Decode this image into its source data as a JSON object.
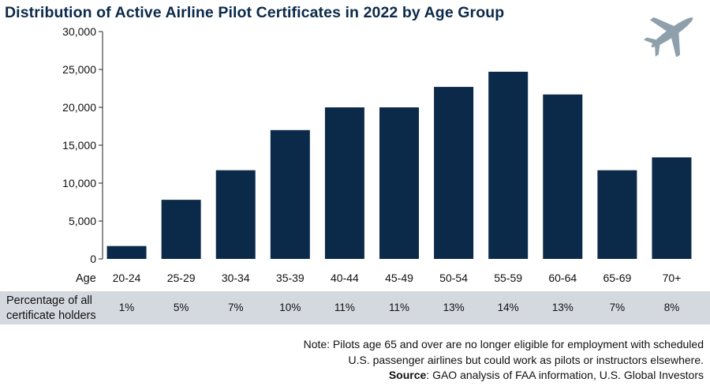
{
  "chart_data": {
    "type": "bar",
    "title": "Distribution of Active Airline Pilot Certificates in 2022 by Age Group",
    "xlabel": "Age",
    "ylabel": "",
    "ylim": [
      0,
      30000
    ],
    "yticks": [
      "0",
      "5,000",
      "10,000",
      "15,000",
      "20,000",
      "25,000",
      "30,000"
    ],
    "categories": [
      "20-24",
      "25-29",
      "30-34",
      "35-39",
      "40-44",
      "45-49",
      "50-54",
      "55-59",
      "60-64",
      "65-69",
      "70+"
    ],
    "values": [
      1700,
      7800,
      11700,
      17000,
      20000,
      20000,
      22700,
      24700,
      21700,
      11700,
      13400
    ],
    "bar_color": "#0b2a4a",
    "grid": false
  },
  "percentage_row": {
    "label": "Percentage of all\ncertificate holders",
    "values": [
      "1%",
      "5%",
      "7%",
      "10%",
      "11%",
      "11%",
      "13%",
      "14%",
      "13%",
      "7%",
      "8%"
    ]
  },
  "note": {
    "line1": "Note: Pilots age 65 and over are no longer eligible for employment with scheduled",
    "line2": "U.S. passenger airlines but could work as pilots or instructors elsewhere."
  },
  "source": {
    "label": "Source",
    "text": ": GAO analysis of FAA information, U.S. Global Investors"
  },
  "icons": {
    "logo": "airplane-icon",
    "logo_color": "#8fa0ad"
  },
  "colors": {
    "band": "#d4d9df"
  }
}
